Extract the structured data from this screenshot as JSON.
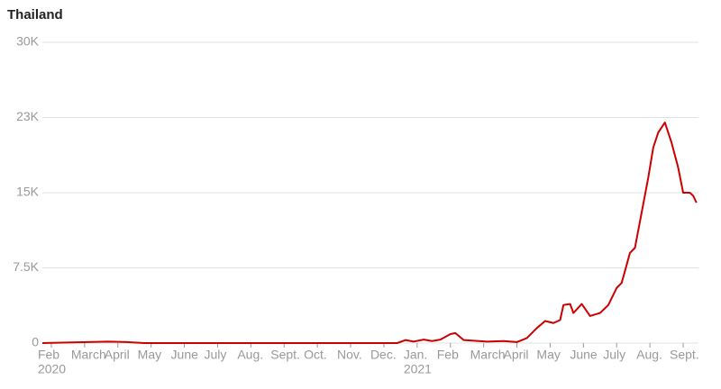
{
  "chart_data": {
    "type": "line",
    "title": "Thailand",
    "x": [
      -0.27,
      1.7,
      2.25,
      2.8,
      10.4,
      10.65,
      10.9,
      11.2,
      11.45,
      11.7,
      12.0,
      12.15,
      12.4,
      13.1,
      13.6,
      14.0,
      14.3,
      14.6,
      14.85,
      15.1,
      15.3,
      15.4,
      15.6,
      15.7,
      15.95,
      16.2,
      16.5,
      16.75,
      17.0,
      17.15,
      17.4,
      17.55,
      17.75,
      17.95,
      18.1,
      18.25,
      18.45,
      18.65,
      18.85,
      19.0,
      19.2,
      19.3,
      19.4
    ],
    "series": [
      {
        "color": "#cc0000",
        "values": [
          0,
          150,
          100,
          0,
          0,
          300,
          150,
          350,
          200,
          350,
          900,
          1000,
          300,
          150,
          200,
          100,
          500,
          1500,
          2200,
          2000,
          2300,
          3800,
          3900,
          3000,
          3900,
          2700,
          3000,
          3800,
          5500,
          6000,
          9000,
          9500,
          13000,
          16500,
          19500,
          21000,
          22000,
          20000,
          17500,
          15000,
          15000,
          14700,
          14000
        ]
      }
    ],
    "xlim": [
      -0.27,
      19.46
    ],
    "xticks": [
      {
        "value": 0,
        "label": "Feb"
      },
      {
        "value": 1,
        "label": "March"
      },
      {
        "value": 2,
        "label": "April"
      },
      {
        "value": 3,
        "label": "May"
      },
      {
        "value": 4,
        "label": "June"
      },
      {
        "value": 5,
        "label": "July"
      },
      {
        "value": 6,
        "label": "Aug."
      },
      {
        "value": 7,
        "label": "Sept."
      },
      {
        "value": 8,
        "label": "Oct."
      },
      {
        "value": 9,
        "label": "Nov."
      },
      {
        "value": 10,
        "label": "Dec."
      },
      {
        "value": 11,
        "label": "Jan."
      },
      {
        "value": 12,
        "label": "Feb"
      },
      {
        "value": 13,
        "label": "March"
      },
      {
        "value": 14,
        "label": "April"
      },
      {
        "value": 15,
        "label": "May"
      },
      {
        "value": 16,
        "label": "June"
      },
      {
        "value": 17,
        "label": "July"
      },
      {
        "value": 18,
        "label": "Aug."
      },
      {
        "value": 19,
        "label": "Sept."
      }
    ],
    "year_labels": [
      {
        "value": 0,
        "label": "2020"
      },
      {
        "value": 11,
        "label": "2021"
      }
    ],
    "ylim": [
      0,
      30000
    ],
    "yticks": [
      0,
      {
        "value": 7500,
        "label": "7.5K"
      },
      {
        "value": 15000,
        "label": "15K"
      },
      {
        "value": 22500,
        "label": "23K"
      },
      {
        "value": 30000,
        "label": "30K"
      }
    ],
    "grid": true
  }
}
